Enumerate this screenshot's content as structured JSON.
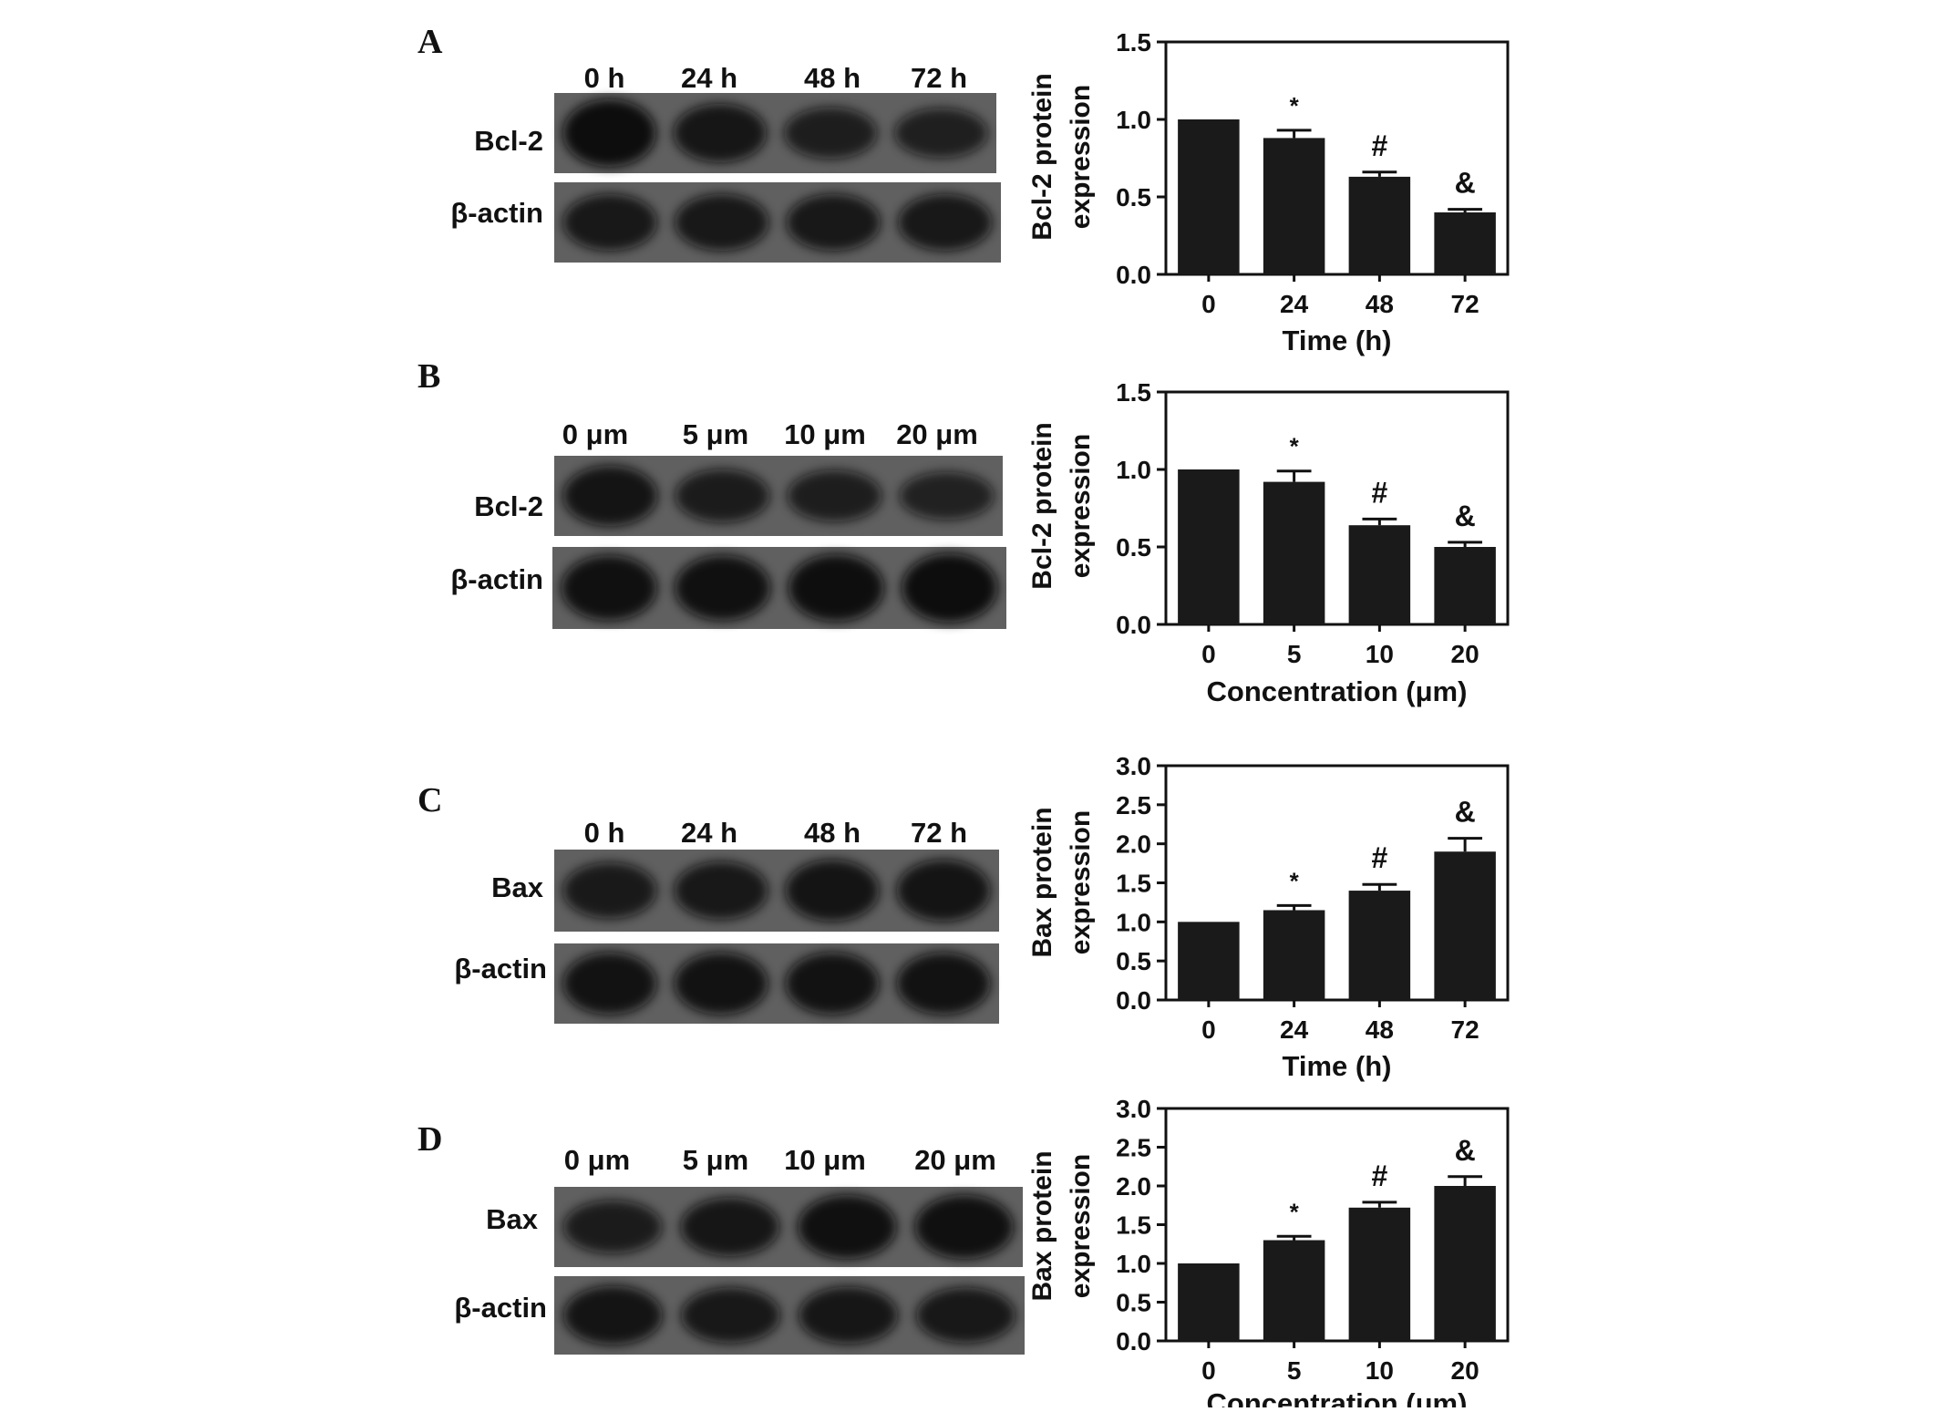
{
  "colors": {
    "ink": "#111111",
    "bar": "#1a1a1a",
    "band": "#0c0c0c",
    "membrane_bg": "#606060"
  },
  "panels": [
    {
      "letter": "A",
      "blot": {
        "lane_labels": [
          "0 h",
          "24 h",
          "48 h",
          "72 h"
        ],
        "rows": [
          {
            "label": "Bcl-2",
            "band_intensity": [
              1.0,
              0.75,
              0.55,
              0.5
            ]
          },
          {
            "label": "β-actin",
            "band_intensity": [
              0.7,
              0.7,
              0.7,
              0.7
            ]
          }
        ]
      }
    },
    {
      "letter": "B",
      "blot": {
        "lane_labels": [
          "0 μm",
          "5 μm",
          "10 μm",
          "20 μm"
        ],
        "rows": [
          {
            "label": "Bcl-2",
            "band_intensity": [
              0.8,
              0.6,
              0.55,
              0.45
            ]
          },
          {
            "label": "β-actin",
            "band_intensity": [
              0.9,
              0.9,
              0.95,
              1.0
            ]
          }
        ]
      }
    },
    {
      "letter": "C",
      "blot": {
        "lane_labels": [
          "0 h",
          "24 h",
          "48 h",
          "72 h"
        ],
        "rows": [
          {
            "label": "Bax",
            "band_intensity": [
              0.65,
              0.7,
              0.8,
              0.8
            ]
          },
          {
            "label": "β-actin",
            "band_intensity": [
              0.85,
              0.85,
              0.85,
              0.85
            ]
          }
        ]
      }
    },
    {
      "letter": "D",
      "blot": {
        "lane_labels": [
          "0 μm",
          "5 μm",
          "10 μm",
          "20 μm"
        ],
        "rows": [
          {
            "label": "Bax",
            "band_intensity": [
              0.6,
              0.75,
              0.9,
              0.9
            ]
          },
          {
            "label": "β-actin",
            "band_intensity": [
              0.8,
              0.7,
              0.75,
              0.7
            ]
          }
        ]
      }
    }
  ],
  "chart_data": [
    {
      "type": "bar",
      "categories": [
        "0",
        "24",
        "48",
        "72"
      ],
      "values": [
        1.0,
        0.88,
        0.63,
        0.4
      ],
      "errors": [
        0.0,
        0.05,
        0.03,
        0.02
      ],
      "annotations": [
        "",
        "*",
        "#",
        "&"
      ],
      "xlabel": "Time (h)",
      "ylabel_lines": [
        "Bcl-2 protein",
        "expression"
      ],
      "ylim": [
        0,
        1.5
      ],
      "yticks": [
        "0.0",
        "0.5",
        "1.0",
        "1.5"
      ],
      "grid": false
    },
    {
      "type": "bar",
      "categories": [
        "0",
        "5",
        "10",
        "20"
      ],
      "values": [
        1.0,
        0.92,
        0.64,
        0.5
      ],
      "errors": [
        0.0,
        0.07,
        0.04,
        0.03
      ],
      "annotations": [
        "",
        "*",
        "#",
        "&"
      ],
      "xlabel": "Concentration (μm)",
      "ylabel_lines": [
        "Bcl-2 protein",
        "expression"
      ],
      "ylim": [
        0,
        1.5
      ],
      "yticks": [
        "0.0",
        "0.5",
        "1.0",
        "1.5"
      ],
      "grid": false
    },
    {
      "type": "bar",
      "categories": [
        "0",
        "24",
        "48",
        "72"
      ],
      "values": [
        1.0,
        1.15,
        1.4,
        1.9
      ],
      "errors": [
        0.0,
        0.06,
        0.08,
        0.17
      ],
      "annotations": [
        "",
        "*",
        "#",
        "&"
      ],
      "xlabel": "Time (h)",
      "ylabel_lines": [
        "Bax protein",
        "expression"
      ],
      "ylim": [
        0,
        3.0
      ],
      "yticks": [
        "0.0",
        "0.5",
        "1.0",
        "1.5",
        "2.0",
        "2.5",
        "3.0"
      ],
      "grid": false
    },
    {
      "type": "bar",
      "categories": [
        "0",
        "5",
        "10",
        "20"
      ],
      "values": [
        1.0,
        1.3,
        1.72,
        2.0
      ],
      "errors": [
        0.0,
        0.05,
        0.07,
        0.12
      ],
      "annotations": [
        "",
        "*",
        "#",
        "&"
      ],
      "xlabel": "Concentration (μm)",
      "ylabel_lines": [
        "Bax protein",
        "expression"
      ],
      "ylim": [
        0,
        3.0
      ],
      "yticks": [
        "0.0",
        "0.5",
        "1.0",
        "1.5",
        "2.0",
        "2.5",
        "3.0"
      ],
      "grid": false
    }
  ]
}
